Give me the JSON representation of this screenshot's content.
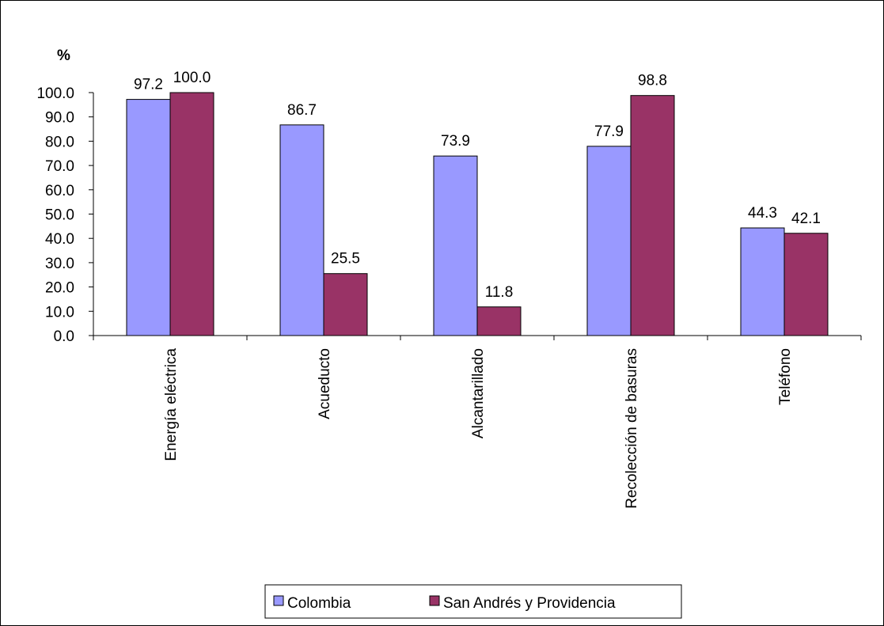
{
  "chart_data": {
    "type": "bar",
    "unit_label": "%",
    "categories": [
      "Energía eléctrica",
      "Acueducto",
      "Alcantarillado",
      "Recolección de basuras",
      "Teléfono"
    ],
    "series": [
      {
        "name": "Colombia",
        "values": [
          97.2,
          86.7,
          73.9,
          77.9,
          44.3
        ],
        "color": "#9999ff"
      },
      {
        "name": "San Andrés y Providencia",
        "values": [
          100.0,
          25.5,
          11.8,
          98.8,
          42.1
        ],
        "color": "#993366"
      }
    ],
    "ylim": [
      0,
      100
    ],
    "yticks": [
      "0.0",
      "10.0",
      "20.0",
      "30.0",
      "40.0",
      "50.0",
      "60.0",
      "70.0",
      "80.0",
      "90.0",
      "100.0"
    ],
    "legend_position": "bottom",
    "grid": false
  }
}
